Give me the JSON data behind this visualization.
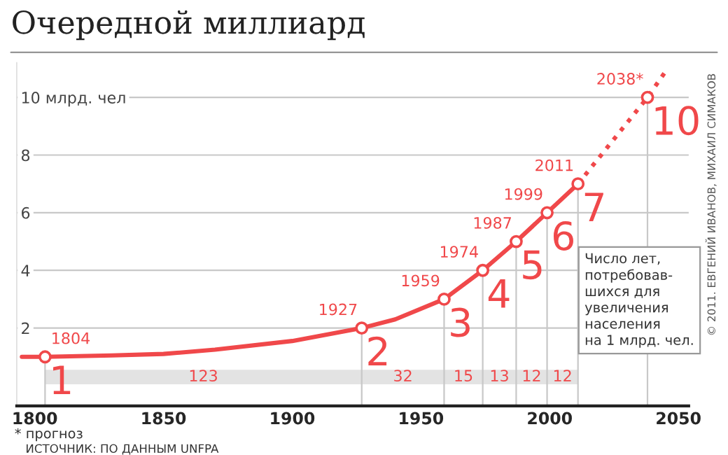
{
  "chart_data": {
    "type": "line",
    "title": "Очередной миллиард",
    "series": [
      {
        "color": "#f0484a",
        "line_style": "solid",
        "x": [
          1795,
          1804,
          1830,
          1850,
          1870,
          1900,
          1927,
          1940,
          1959,
          1974,
          1987,
          1999,
          2011
        ],
        "values": [
          1.0,
          1.0,
          1.05,
          1.1,
          1.25,
          1.55,
          2,
          2.3,
          3,
          4,
          5,
          6,
          7
        ]
      },
      {
        "type": "line",
        "color": "#f0484a",
        "line_style": "dotted",
        "x": [
          2011,
          2038,
          2045
        ],
        "values": [
          7,
          10,
          10.9
        ]
      },
      {
        "type": "scatter",
        "color": "#f0484a",
        "marker": "circle",
        "x": [
          1804,
          1927,
          1959,
          1974,
          1987,
          1999,
          2011,
          2038
        ],
        "values": [
          1,
          2,
          3,
          4,
          5,
          6,
          7,
          10
        ]
      }
    ],
    "xlim": [
      1793,
      2054
    ],
    "ylim": [
      -0.7,
      11.2
    ],
    "xticks": [
      1800,
      1850,
      1900,
      1950,
      2000,
      2050
    ],
    "yticks": [
      2,
      4,
      6,
      8,
      {
        "value": 10,
        "label": "10 млрд. чел"
      }
    ],
    "grid": "y",
    "bands": [
      {
        "axis": "x",
        "from": 1804,
        "to": 1927,
        "label": "123",
        "color": "#e3e3e3"
      },
      {
        "axis": "x",
        "from": 1927,
        "to": 1959,
        "label": "32",
        "color": "#e3e3e3"
      },
      {
        "axis": "x",
        "from": 1959,
        "to": 1974,
        "label": "15",
        "color": "#e3e3e3"
      },
      {
        "axis": "x",
        "from": 1974,
        "to": 1987,
        "label": "13",
        "color": "#e3e3e3"
      },
      {
        "axis": "x",
        "from": 1987,
        "to": 1999,
        "label": "12",
        "color": "#e3e3e3"
      },
      {
        "axis": "x",
        "from": 1999,
        "to": 2011,
        "label": "12",
        "color": "#e3e3e3"
      }
    ],
    "annotations": [
      {
        "text": "1804",
        "x": 1804,
        "y": 1
      },
      {
        "text": "1927",
        "x": 1927,
        "y": 2
      },
      {
        "text": "1959",
        "x": 1959,
        "y": 3
      },
      {
        "text": "1974",
        "x": 1974,
        "y": 4
      },
      {
        "text": "1987",
        "x": 1987,
        "y": 5
      },
      {
        "text": "1999",
        "x": 1999,
        "y": 6
      },
      {
        "text": "2011",
        "x": 2011,
        "y": 7
      },
      {
        "text": "2038*",
        "x": 2038,
        "y": 10
      },
      {
        "text": "1",
        "x": 1804,
        "y": 1
      },
      {
        "text": "2",
        "x": 1927,
        "y": 2
      },
      {
        "text": "3",
        "x": 1959,
        "y": 3
      },
      {
        "text": "4",
        "x": 1974,
        "y": 4
      },
      {
        "text": "5",
        "x": 1987,
        "y": 5
      },
      {
        "text": "6",
        "x": 1999,
        "y": 6
      },
      {
        "text": "7",
        "x": 2011,
        "y": 7
      },
      {
        "text": "10",
        "x": 2038,
        "y": 10
      },
      "Число лет,\nпотребовав-\nшихся для\nувеличения\nнаселения\nна 1 млрд. чел.",
      "* прогноз",
      "ИСТОЧНИК: ПО ДАННЫМ UNFPA",
      "© 2011. ЕВГЕНИЙ ИВАНОВ, МИХАИЛ СИМАКОВ"
    ]
  }
}
